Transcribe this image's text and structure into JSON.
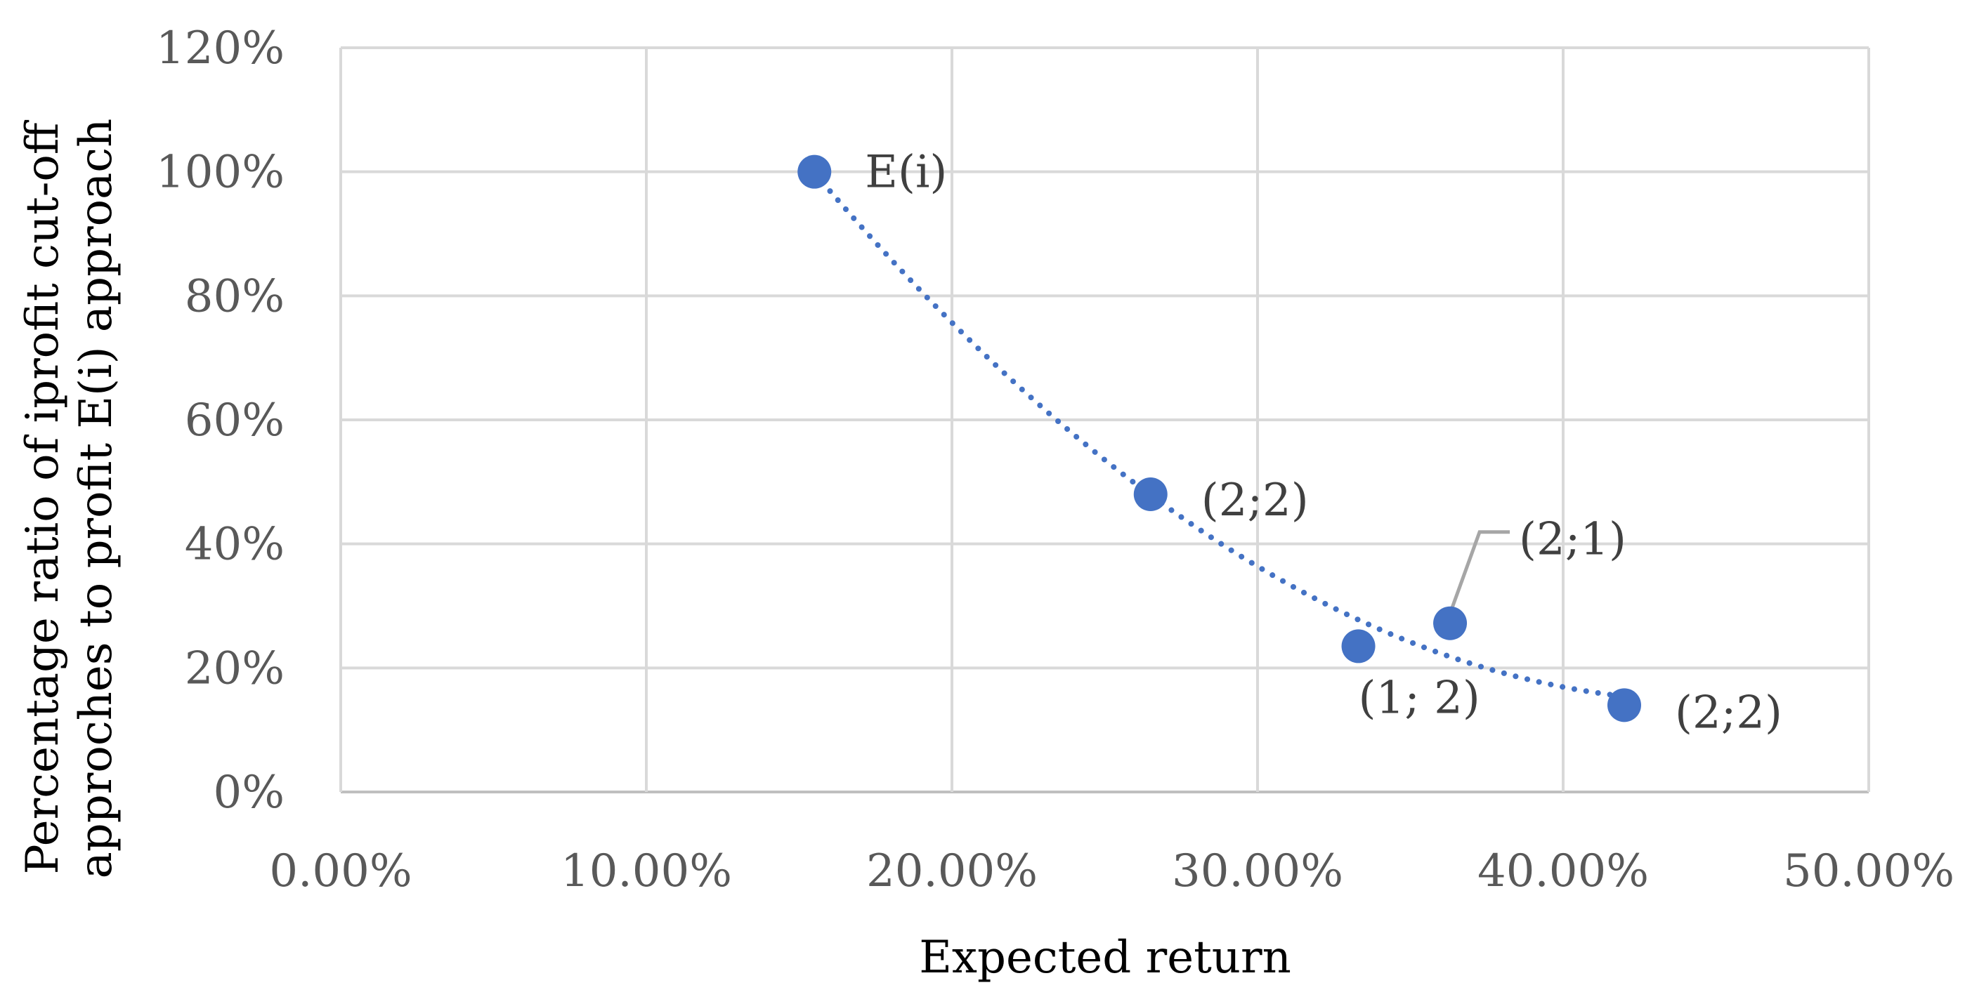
{
  "chart_data": {
    "type": "scatter",
    "xlabel": "Expected return",
    "ylabel_lines": [
      "Percentage ratio of iprofit cut-off",
      "approches to profit E(i) approach"
    ],
    "xlim": [
      0,
      0.5
    ],
    "ylim": [
      0,
      1.2
    ],
    "x_ticks": [
      0,
      0.1,
      0.2,
      0.3,
      0.4,
      0.5
    ],
    "x_tick_labels": [
      "0.00%",
      "10.00%",
      "20.00%",
      "30.00%",
      "40.00%",
      "50.00%"
    ],
    "y_ticks": [
      0,
      0.2,
      0.4,
      0.6,
      0.8,
      1.0,
      1.2
    ],
    "y_tick_labels": [
      "0%",
      "20%",
      "40%",
      "60%",
      "80%",
      "100%",
      "120%"
    ],
    "grid": true,
    "marker_color": "#4472c4",
    "trendline": {
      "style": "dotted",
      "color": "#4472c4",
      "x_range": [
        0.155,
        0.42
      ]
    },
    "points": [
      {
        "x": 0.155,
        "y": 1.0,
        "label": "E(i)"
      },
      {
        "x": 0.265,
        "y": 0.48,
        "label": "(2;2)"
      },
      {
        "x": 0.333,
        "y": 0.235,
        "label": "(1; 2)"
      },
      {
        "x": 0.363,
        "y": 0.272,
        "label": "(2;1)"
      },
      {
        "x": 0.42,
        "y": 0.14,
        "label": "(2;2)"
      }
    ]
  }
}
